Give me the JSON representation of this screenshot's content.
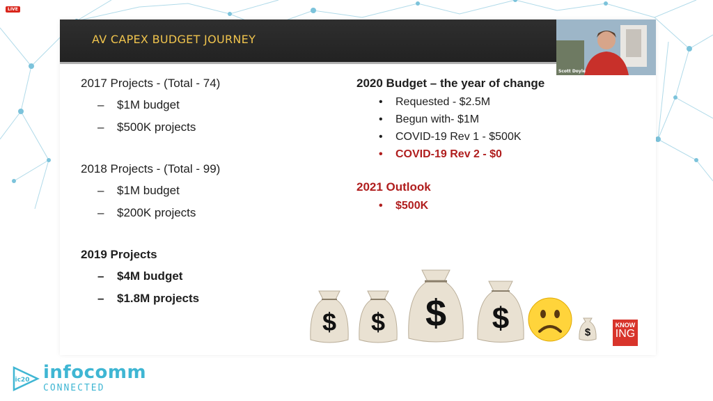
{
  "badge": {
    "live": "LIVE"
  },
  "slide": {
    "title": "AV CAPEX BUDGET JOURNEY",
    "left": {
      "y2017": {
        "heading": "2017 Projects  - (Total - 74)",
        "items": [
          "$1M budget",
          "$500K projects"
        ]
      },
      "y2018": {
        "heading": "2018 Projects - (Total - 99)",
        "items": [
          "$1M budget",
          "$200K projects"
        ]
      },
      "y2019": {
        "heading": "2019 Projects",
        "items": [
          "$4M budget",
          "$1.8M projects"
        ]
      }
    },
    "right": {
      "y2020": {
        "heading": "2020 Budget  –  the year of change",
        "items": [
          "Requested - $2.5M",
          "Begun with- $1M",
          "COVID-19 Rev 1 - $500K",
          "COVID-19 Rev 2 - $0"
        ]
      },
      "y2021": {
        "heading": "2021 Outlook",
        "items": [
          "$500K"
        ]
      }
    },
    "bag_symbol": "$",
    "knowing_logo": {
      "top": "KNOW",
      "bottom": "ING"
    }
  },
  "webcam": {
    "speaker_name": "Scott Doyle"
  },
  "event_logo": {
    "mark": "ic20",
    "name": "infocomm",
    "sub": "CONNECTED"
  },
  "colors": {
    "title_text": "#f0c44d",
    "highlight_red": "#b01e1e",
    "logo_blue": "#3fb6d3",
    "network_lines": "#7cc3db"
  }
}
